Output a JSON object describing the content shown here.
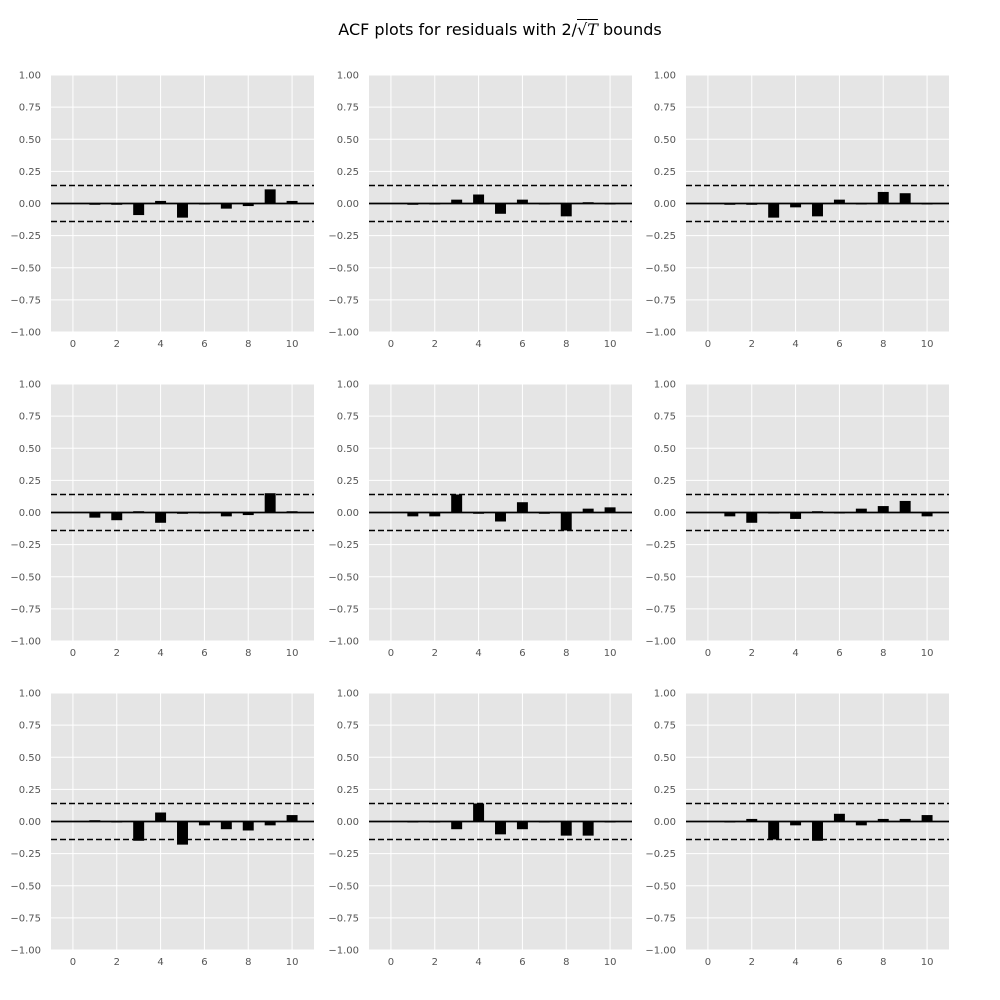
{
  "title": {
    "prefix": "ACF plots for residuals with 2/",
    "radical": "√",
    "symbol": "T",
    "suffix": " bounds"
  },
  "colors": {
    "panel_bg": "#e5e5e5",
    "grid": "#ffffff",
    "bar": "#000000",
    "tick_text": "#555555"
  },
  "chart_data": [
    {
      "type": "bar",
      "xlim": [
        -1,
        11
      ],
      "ylim": [
        -1,
        1
      ],
      "x_ticks": [
        "0",
        "2",
        "4",
        "6",
        "8",
        "10"
      ],
      "y_ticks": [
        "1.00",
        "0.75",
        "0.50",
        "0.25",
        "0.00",
        "−0.25",
        "−0.50",
        "−0.75",
        "−1.00"
      ],
      "bounds": [
        0.14,
        -0.14
      ],
      "grid": true,
      "lags": [
        1,
        2,
        3,
        4,
        5,
        6,
        7,
        8,
        9,
        10
      ],
      "values": [
        -0.01,
        -0.01,
        -0.09,
        0.02,
        -0.11,
        0.0,
        -0.04,
        -0.02,
        0.11,
        0.02
      ]
    },
    {
      "type": "bar",
      "xlim": [
        -1,
        11
      ],
      "ylim": [
        -1,
        1
      ],
      "x_ticks": [
        "0",
        "2",
        "4",
        "6",
        "8",
        "10"
      ],
      "y_ticks": [
        "1.00",
        "0.75",
        "0.50",
        "0.25",
        "0.00",
        "−0.25",
        "−0.50",
        "−0.75",
        "−1.00"
      ],
      "bounds": [
        0.14,
        -0.14
      ],
      "grid": true,
      "lags": [
        1,
        2,
        3,
        4,
        5,
        6,
        7,
        8,
        9,
        10
      ],
      "values": [
        -0.01,
        0.0,
        0.03,
        0.07,
        -0.08,
        0.03,
        0.0,
        -0.1,
        0.01,
        0.0
      ]
    },
    {
      "type": "bar",
      "xlim": [
        -1,
        11
      ],
      "ylim": [
        -1,
        1
      ],
      "x_ticks": [
        "0",
        "2",
        "4",
        "6",
        "8",
        "10"
      ],
      "y_ticks": [
        "1.00",
        "0.75",
        "0.50",
        "0.25",
        "0.00",
        "−0.25",
        "−0.50",
        "−0.75",
        "−1.00"
      ],
      "bounds": [
        0.14,
        -0.14
      ],
      "grid": true,
      "lags": [
        1,
        2,
        3,
        4,
        5,
        6,
        7,
        8,
        9,
        10
      ],
      "values": [
        -0.01,
        -0.01,
        -0.11,
        -0.03,
        -0.1,
        0.03,
        0.0,
        0.09,
        0.08,
        0.0
      ]
    },
    {
      "type": "bar",
      "xlim": [
        -1,
        11
      ],
      "ylim": [
        -1,
        1
      ],
      "x_ticks": [
        "0",
        "2",
        "4",
        "6",
        "8",
        "10"
      ],
      "y_ticks": [
        "1.00",
        "0.75",
        "0.50",
        "0.25",
        "0.00",
        "−0.25",
        "−0.50",
        "−0.75",
        "−1.00"
      ],
      "bounds": [
        0.14,
        -0.14
      ],
      "grid": true,
      "lags": [
        1,
        2,
        3,
        4,
        5,
        6,
        7,
        8,
        9,
        10
      ],
      "values": [
        -0.04,
        -0.06,
        0.01,
        -0.08,
        -0.01,
        0.0,
        -0.03,
        -0.02,
        0.15,
        0.01
      ]
    },
    {
      "type": "bar",
      "xlim": [
        -1,
        11
      ],
      "ylim": [
        -1,
        1
      ],
      "x_ticks": [
        "0",
        "2",
        "4",
        "6",
        "8",
        "10"
      ],
      "y_ticks": [
        "1.00",
        "0.75",
        "0.50",
        "0.25",
        "0.00",
        "−0.25",
        "−0.50",
        "−0.75",
        "−1.00"
      ],
      "bounds": [
        0.14,
        -0.14
      ],
      "grid": true,
      "lags": [
        1,
        2,
        3,
        4,
        5,
        6,
        7,
        8,
        9,
        10
      ],
      "values": [
        -0.03,
        -0.03,
        0.14,
        -0.01,
        -0.07,
        0.08,
        -0.01,
        -0.14,
        0.03,
        0.04
      ]
    },
    {
      "type": "bar",
      "xlim": [
        -1,
        11
      ],
      "ylim": [
        -1,
        1
      ],
      "x_ticks": [
        "0",
        "2",
        "4",
        "6",
        "8",
        "10"
      ],
      "y_ticks": [
        "1.00",
        "0.75",
        "0.50",
        "0.25",
        "0.00",
        "−0.25",
        "−0.50",
        "−0.75",
        "−1.00"
      ],
      "bounds": [
        0.14,
        -0.14
      ],
      "grid": true,
      "lags": [
        1,
        2,
        3,
        4,
        5,
        6,
        7,
        8,
        9,
        10
      ],
      "values": [
        -0.03,
        -0.08,
        0.0,
        -0.05,
        0.01,
        0.0,
        0.03,
        0.05,
        0.09,
        -0.03
      ]
    },
    {
      "type": "bar",
      "xlim": [
        -1,
        11
      ],
      "ylim": [
        -1,
        1
      ],
      "x_ticks": [
        "0",
        "2",
        "4",
        "6",
        "8",
        "10"
      ],
      "y_ticks": [
        "1.00",
        "0.75",
        "0.50",
        "0.25",
        "0.00",
        "−0.25",
        "−0.50",
        "−0.75",
        "−1.00"
      ],
      "bounds": [
        0.14,
        -0.14
      ],
      "grid": true,
      "lags": [
        1,
        2,
        3,
        4,
        5,
        6,
        7,
        8,
        9,
        10
      ],
      "values": [
        0.01,
        0.0,
        -0.15,
        0.07,
        -0.18,
        -0.03,
        -0.06,
        -0.07,
        -0.03,
        0.05
      ]
    },
    {
      "type": "bar",
      "xlim": [
        -1,
        11
      ],
      "ylim": [
        -1,
        1
      ],
      "x_ticks": [
        "0",
        "2",
        "4",
        "6",
        "8",
        "10"
      ],
      "y_ticks": [
        "1.00",
        "0.75",
        "0.50",
        "0.25",
        "0.00",
        "−0.25",
        "−0.50",
        "−0.75",
        "−1.00"
      ],
      "bounds": [
        0.14,
        -0.14
      ],
      "grid": true,
      "lags": [
        1,
        2,
        3,
        4,
        5,
        6,
        7,
        8,
        9,
        10
      ],
      "values": [
        0.0,
        0.0,
        -0.06,
        0.14,
        -0.1,
        -0.06,
        0.0,
        -0.11,
        -0.11,
        0.0
      ]
    },
    {
      "type": "bar",
      "xlim": [
        -1,
        11
      ],
      "ylim": [
        -1,
        1
      ],
      "x_ticks": [
        "0",
        "2",
        "4",
        "6",
        "8",
        "10"
      ],
      "y_ticks": [
        "1.00",
        "0.75",
        "0.50",
        "0.25",
        "0.00",
        "−0.25",
        "−0.50",
        "−0.75",
        "−1.00"
      ],
      "bounds": [
        0.14,
        -0.14
      ],
      "grid": true,
      "lags": [
        1,
        2,
        3,
        4,
        5,
        6,
        7,
        8,
        9,
        10
      ],
      "values": [
        0.0,
        0.02,
        -0.14,
        -0.03,
        -0.15,
        0.06,
        -0.03,
        0.02,
        0.02,
        0.05
      ]
    }
  ]
}
